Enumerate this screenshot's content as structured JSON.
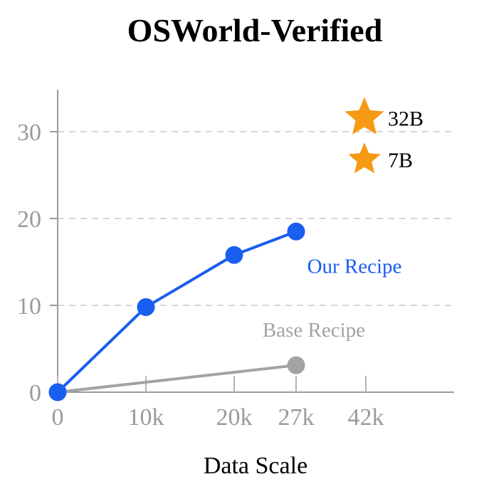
{
  "chart_data": {
    "type": "line",
    "title": "OSWorld-Verified",
    "xlabel": "Data Scale",
    "ylabel": "",
    "x_ticks": [
      {
        "value": 0,
        "label": "0"
      },
      {
        "value": 10000,
        "label": "10k"
      },
      {
        "value": 20000,
        "label": "20k"
      },
      {
        "value": 27000,
        "label": "27k"
      },
      {
        "value": 42000,
        "label": "42k"
      }
    ],
    "y_ticks": [
      0,
      10,
      20,
      30
    ],
    "ylim": [
      0,
      35
    ],
    "grid": "horizontal dashed",
    "series": [
      {
        "name": "Our Recipe",
        "color": "#1a5ef0",
        "points": [
          {
            "x": 0,
            "y": 0
          },
          {
            "x": 10000,
            "y": 9.8
          },
          {
            "x": 20000,
            "y": 15.8
          },
          {
            "x": 27000,
            "y": 18.5
          }
        ]
      },
      {
        "name": "Base Recipe",
        "color": "#a3a3a3",
        "points": [
          {
            "x": 0,
            "y": 0
          },
          {
            "x": 27000,
            "y": 3.1
          }
        ]
      }
    ],
    "markers": [
      {
        "label": "32B",
        "x": 42000,
        "y": 31.6,
        "shape": "star",
        "color": "#f59a12"
      },
      {
        "label": "7B",
        "x": 42000,
        "y": 26.8,
        "shape": "star",
        "color": "#f59a12"
      }
    ]
  }
}
